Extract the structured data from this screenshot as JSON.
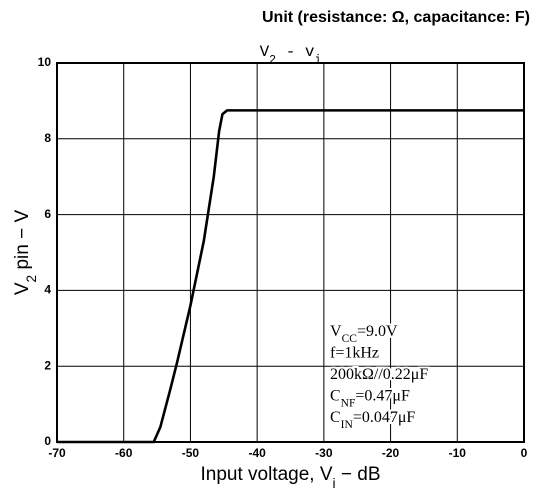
{
  "chart_data": {
    "type": "line",
    "header": "Unit (resistance: Ω, capacitance: F)",
    "title": [
      "V",
      "2",
      " - v",
      "i"
    ],
    "xlabel": [
      "Input voltage, V",
      "i",
      " − dB"
    ],
    "ylabel": [
      "V",
      "2",
      " pin − V"
    ],
    "series": [
      {
        "color": "#000000",
        "x": [
          -70,
          -55.5,
          -54.5,
          -53,
          -52,
          -50,
          -48,
          -46.5,
          -45.7,
          -45.2,
          -44.5,
          0
        ],
        "values": [
          0,
          0,
          0.4,
          1.4,
          2.1,
          3.6,
          5.3,
          7.0,
          8.2,
          8.65,
          8.75,
          8.75
        ]
      }
    ],
    "xlim": [
      -70,
      0
    ],
    "xticks": [
      -70,
      -60,
      -50,
      -40,
      -30,
      -20,
      -10,
      0
    ],
    "ylim": [
      0,
      10
    ],
    "yticks": [
      0,
      2,
      4,
      6,
      8,
      10
    ],
    "grid": true,
    "annotations": [
      [
        "V",
        "CC",
        "=9.0V"
      ],
      [
        "f=1kHz"
      ],
      [
        "200kΩ//0.22μF"
      ],
      [
        "C",
        "NF",
        "=0.47μF"
      ],
      [
        "C",
        "IN",
        "=0.047μF"
      ]
    ]
  }
}
